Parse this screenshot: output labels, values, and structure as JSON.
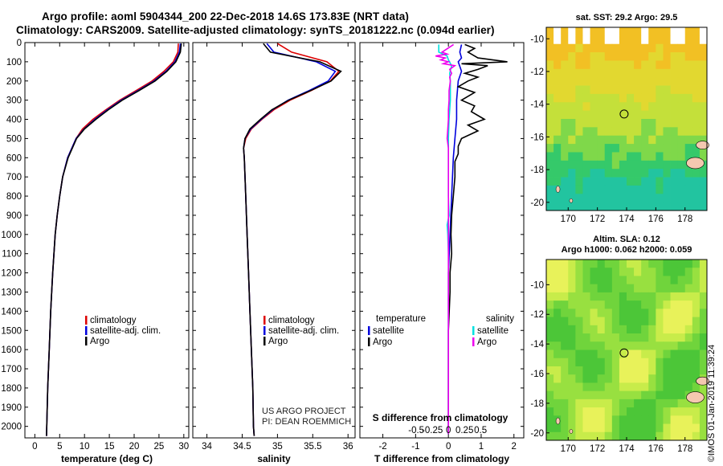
{
  "title_line1": "Argo profile: aoml 5904344_200 22-Dec-2018 14.6S 173.83E (NRT data)",
  "title_line2": "Climatology: CARS2009. Satellite-adjusted climatology: synTS_20181222.nc (0.094d earlier)",
  "map_top_title": "sat. SST: 29.2 Argo: 29.5",
  "map_bottom_title1": "Altim. SLA: 0.12",
  "map_bottom_title2": "Argo h1000: 0.062 h2000: 0.059",
  "credit": "©IMOS 01-Jan-2019 11:39:24",
  "project_line1": "US ARGO PROJECT",
  "project_line2": "PI: DEAN ROEMMICH",
  "colors": {
    "climatology": "#dd0000",
    "satellite": "#0000dd",
    "argo": "#000000",
    "sal_satellite": "#00e0e0",
    "sal_argo": "#ee00ee"
  },
  "chart_data": [
    {
      "type": "line",
      "name": "temperature",
      "xlabel": "temperature (deg C)",
      "xlim": [
        -2,
        31
      ],
      "ylim": [
        0,
        2060
      ],
      "xticks": [
        0,
        5,
        10,
        15,
        20,
        25,
        30
      ],
      "yticks": [
        0,
        100,
        200,
        300,
        400,
        500,
        600,
        700,
        800,
        900,
        1000,
        1100,
        1200,
        1300,
        1400,
        1500,
        1600,
        1700,
        1800,
        1900,
        2000
      ],
      "legend": [
        "climatology",
        "satellite-adj. clim.",
        "Argo"
      ],
      "series": [
        {
          "name": "climatology",
          "depth": [
            5,
            50,
            100,
            150,
            200,
            250,
            300,
            350,
            400,
            450,
            500,
            600,
            700,
            800,
            900,
            1000,
            1200,
            1400,
            1600,
            1800,
            2000,
            2050
          ],
          "values": [
            28.9,
            28.8,
            27.9,
            26.0,
            23.6,
            20.4,
            17.1,
            14.3,
            11.7,
            9.6,
            8.3,
            6.6,
            5.6,
            5.0,
            4.5,
            4.1,
            3.6,
            3.2,
            2.9,
            2.6,
            2.4,
            2.35
          ]
        },
        {
          "name": "satellite-adj. clim.",
          "depth": [
            5,
            50,
            100,
            150,
            200,
            250,
            300,
            350,
            400,
            450,
            500,
            600,
            700,
            800,
            900,
            1000,
            1200,
            1400,
            1600,
            1800,
            2000,
            2050
          ],
          "values": [
            29.3,
            29.1,
            28.2,
            26.4,
            24.0,
            20.8,
            17.4,
            14.6,
            12.1,
            9.9,
            8.3,
            6.6,
            5.6,
            5.0,
            4.5,
            4.1,
            3.6,
            3.2,
            2.9,
            2.6,
            2.4,
            2.35
          ]
        },
        {
          "name": "Argo",
          "depth": [
            5,
            50,
            100,
            150,
            200,
            250,
            300,
            350,
            400,
            450,
            500,
            600,
            700,
            800,
            900,
            1000,
            1200,
            1400,
            1600,
            1800,
            2000,
            2050
          ],
          "values": [
            29.5,
            29.3,
            28.4,
            26.6,
            24.2,
            21.0,
            17.6,
            14.8,
            12.3,
            10.0,
            8.4,
            6.7,
            5.6,
            5.0,
            4.5,
            4.1,
            3.6,
            3.2,
            2.9,
            2.6,
            2.4,
            2.35
          ]
        }
      ]
    },
    {
      "type": "line",
      "name": "salinity",
      "xlabel": "salinity",
      "xlim": [
        33.8,
        36.1
      ],
      "ylim": [
        0,
        2060
      ],
      "xticks": [
        34,
        34.5,
        35,
        35.5,
        36
      ],
      "xticklabels": [
        "34",
        "34.5",
        "35",
        "35.5",
        "36"
      ],
      "legend": [
        "climatology",
        "satellite-adj. clim.",
        "Argo"
      ],
      "series": [
        {
          "name": "climatology",
          "depth": [
            5,
            50,
            100,
            150,
            200,
            250,
            300,
            350,
            400,
            450,
            500,
            550,
            600,
            700,
            800,
            1000,
            1200,
            1400,
            1600,
            1800,
            2000,
            2050
          ],
          "values": [
            35.0,
            35.2,
            35.7,
            35.87,
            35.75,
            35.48,
            35.18,
            34.95,
            34.78,
            34.63,
            34.55,
            34.52,
            34.53,
            34.54,
            34.55,
            34.57,
            34.59,
            34.61,
            34.63,
            34.65,
            34.66,
            34.67
          ]
        },
        {
          "name": "satellite-adj. clim.",
          "depth": [
            5,
            50,
            100,
            150,
            200,
            250,
            300,
            350,
            400,
            450,
            500,
            550,
            600,
            700,
            800,
            1000,
            1200,
            1400,
            1600,
            1800,
            2000,
            2050
          ],
          "values": [
            34.85,
            34.95,
            35.55,
            35.82,
            35.72,
            35.45,
            35.15,
            34.93,
            34.77,
            34.62,
            34.54,
            34.52,
            34.53,
            34.54,
            34.55,
            34.57,
            34.59,
            34.61,
            34.63,
            34.65,
            34.66,
            34.67
          ]
        },
        {
          "name": "Argo",
          "depth": [
            5,
            50,
            100,
            150,
            200,
            250,
            300,
            350,
            400,
            450,
            500,
            550,
            600,
            700,
            800,
            1000,
            1200,
            1400,
            1600,
            1800,
            2000,
            2050
          ],
          "values": [
            34.8,
            34.9,
            35.6,
            35.9,
            35.76,
            35.47,
            35.16,
            34.92,
            34.76,
            34.61,
            34.54,
            34.52,
            34.53,
            34.54,
            34.55,
            34.57,
            34.59,
            34.61,
            34.63,
            34.65,
            34.66,
            34.67
          ]
        }
      ]
    },
    {
      "type": "line",
      "name": "differences",
      "xlabel": "T difference from climatology",
      "xlabel_top": "S difference from climatology",
      "xlim": [
        -2.7,
        2.3
      ],
      "ylim": [
        0,
        2060
      ],
      "xticks": [
        -2,
        -1,
        0,
        1,
        2
      ],
      "sticks": [
        -0.5,
        -0.25,
        0,
        0.25,
        0.5
      ],
      "sticklabels": [
        "-0.5",
        "-0.25",
        "0",
        "0.25",
        "0.5"
      ],
      "legend_left_title": "temperature",
      "legend_right_title": "salinity",
      "legend": [
        "satellite",
        "Argo",
        "satellite",
        "Argo"
      ],
      "series": [
        {
          "name": "T satellite",
          "quantity": "T",
          "depth": [
            10,
            50,
            80,
            100,
            150,
            200,
            300,
            400,
            500,
            600,
            800,
            1000,
            1200,
            1400,
            1600,
            1800,
            2000,
            2040
          ],
          "values": [
            0.4,
            0.35,
            0.4,
            0.3,
            0.4,
            0.3,
            0.25,
            0.25,
            0.2,
            0.15,
            0.1,
            0.05,
            0.0,
            0.0,
            0.0,
            0.0,
            0.0,
            0.0
          ]
        },
        {
          "name": "T Argo",
          "quantity": "T",
          "depth": [
            10,
            30,
            50,
            80,
            100,
            110,
            120,
            140,
            160,
            180,
            200,
            230,
            260,
            300,
            330,
            360,
            400,
            430,
            460,
            500,
            540,
            580,
            620,
            700,
            800,
            900,
            1000,
            1100,
            1200,
            1300,
            1500,
            1800,
            2000,
            2040
          ],
          "values": [
            0.5,
            0.8,
            0.6,
            0.9,
            1.8,
            0.4,
            1.2,
            0.9,
            0.5,
            0.9,
            0.6,
            0.3,
            0.8,
            0.4,
            0.8,
            0.7,
            1.1,
            0.6,
            0.9,
            0.4,
            0.3,
            0.3,
            0.2,
            0.2,
            0.15,
            0.1,
            0.08,
            0.1,
            0.05,
            0.05,
            0.0,
            0.0,
            0.0,
            0.0
          ]
        },
        {
          "name": "S satellite",
          "quantity": "S",
          "depth": [
            10,
            50,
            70,
            90,
            120,
            160,
            200,
            300,
            400,
            500,
            600,
            700,
            800,
            900,
            950,
            1000,
            1100,
            1200,
            1400,
            1600,
            1800,
            2000,
            2040
          ],
          "values": [
            -0.15,
            -0.15,
            -0.02,
            0.0,
            0.05,
            0.02,
            0.03,
            0.03,
            0.01,
            0.0,
            0.0,
            0.0,
            0.0,
            0.01,
            -0.02,
            -0.01,
            0.0,
            0.0,
            0.0,
            0.0,
            0.0,
            0.0,
            0.0
          ]
        },
        {
          "name": "S Argo",
          "quantity": "S",
          "depth": [
            10,
            50,
            60,
            70,
            80,
            90,
            100,
            110,
            120,
            140,
            160,
            180,
            200,
            250,
            300,
            350,
            400,
            450,
            500,
            550,
            600,
            700,
            800,
            1000,
            1200,
            1400,
            1600,
            1800,
            2000,
            2040
          ],
          "values": [
            0.08,
            -0.1,
            -0.02,
            -0.2,
            -0.05,
            -0.12,
            0.0,
            -0.08,
            0.1,
            0.02,
            0.05,
            0.02,
            0.03,
            0.01,
            0.01,
            0.0,
            0.0,
            -0.01,
            -0.02,
            0.0,
            0.0,
            0.0,
            0.0,
            0.0,
            0.0,
            0.0,
            0.0,
            0.0,
            0.0,
            0.0
          ]
        }
      ]
    },
    {
      "type": "heatmap",
      "name": "sst-map",
      "title": "sat. SST: 29.2 Argo: 29.5",
      "xlim": [
        168.5,
        179.5
      ],
      "ylim": [
        -20.5,
        -9.3
      ],
      "xticks": [
        170,
        172,
        174,
        176,
        178
      ],
      "yticks": [
        -10,
        -12,
        -14,
        -16,
        -18,
        -20
      ],
      "marker": {
        "lon": 173.83,
        "lat": -14.6
      }
    },
    {
      "type": "heatmap",
      "name": "sla-map",
      "title": "Altim. SLA: 0.12",
      "xlim": [
        168.5,
        179.5
      ],
      "ylim": [
        -20.5,
        -8.3
      ],
      "xticks": [
        170,
        172,
        174,
        176,
        178
      ],
      "yticks": [
        -10,
        -12,
        -14,
        -16,
        -18,
        -20
      ],
      "marker": {
        "lon": 173.83,
        "lat": -14.6
      }
    }
  ]
}
